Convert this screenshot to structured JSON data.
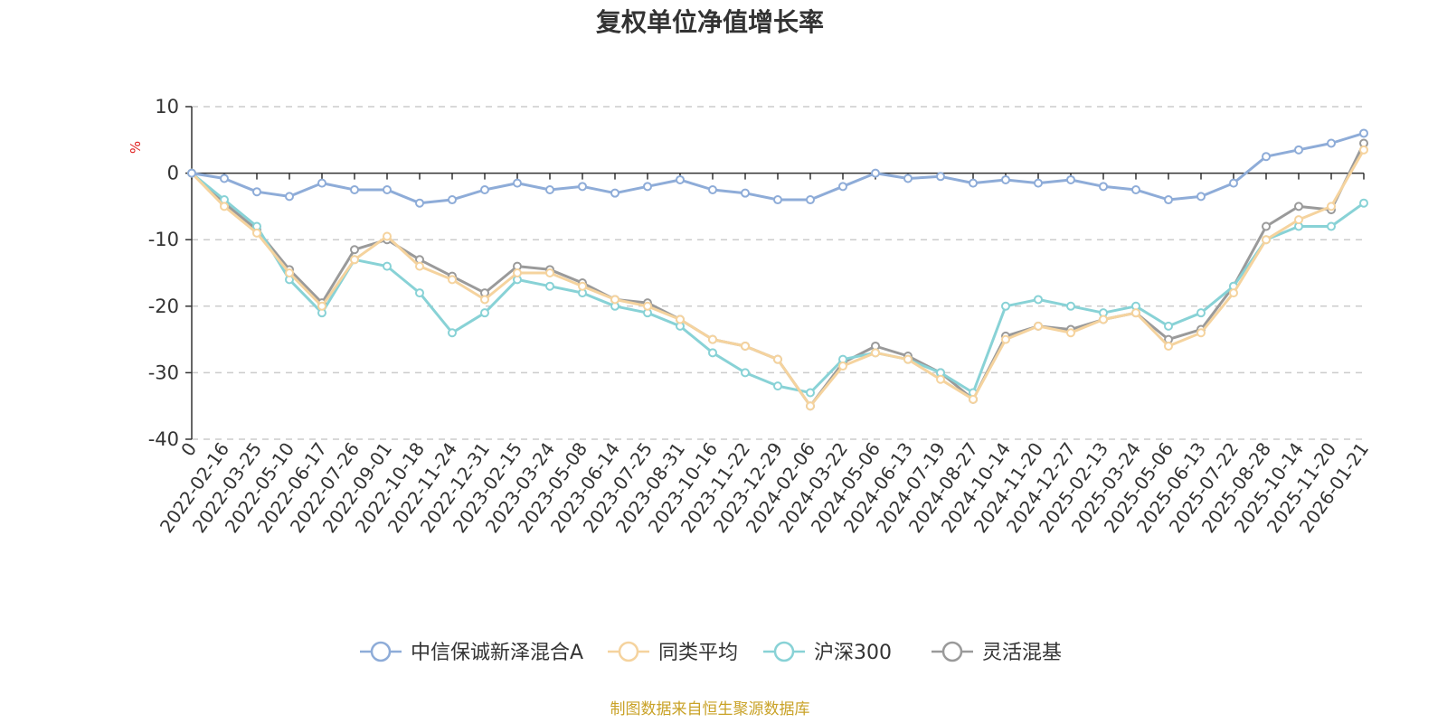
{
  "chart_data": {
    "type": "line",
    "title": "复权单位净值增长率",
    "ylabel": "%",
    "ylim": [
      -40,
      10
    ],
    "yticks": [
      10,
      0,
      -10,
      -20,
      -30,
      -40
    ],
    "grid": true,
    "legend_position": "bottom",
    "x_categories": [
      "0",
      "2022-02-16",
      "2022-03-25",
      "2022-05-10",
      "2022-06-17",
      "2022-07-26",
      "2022-09-01",
      "2022-10-18",
      "2022-11-24",
      "2022-12-31",
      "2023-02-15",
      "2023-03-24",
      "2023-05-08",
      "2023-06-14",
      "2023-07-25",
      "2023-08-31",
      "2023-10-16",
      "2023-11-22",
      "2023-12-29",
      "2024-02-06",
      "2024-03-22",
      "2024-05-06",
      "2024-06-13",
      "2024-07-19",
      "2024-08-27",
      "2024-10-14",
      "2024-11-20",
      "2024-12-27",
      "2025-02-13",
      "2025-03-24",
      "2025-05-06",
      "2025-06-13",
      "2025-07-22",
      "2025-08-28",
      "2025-10-14",
      "2025-11-20",
      "2026-01-21"
    ],
    "series": [
      {
        "name": "中信保诚新泽混合A",
        "color": "#8eacd8",
        "values": [
          0,
          -0.8,
          -2.8,
          -3.5,
          -1.5,
          -2.5,
          -2.5,
          -4.5,
          -4,
          -2.5,
          -1.5,
          -2.5,
          -2,
          -3,
          -2,
          -1,
          -2.5,
          -3,
          -4,
          -4,
          -2,
          0,
          -0.8,
          -0.5,
          -1.5,
          -1,
          -1.5,
          -1,
          -2,
          -2.5,
          -4,
          -3.5,
          -1.5,
          2.5,
          3.5,
          4.5,
          6
        ]
      },
      {
        "name": "同类平均",
        "color": "#f5d39e",
        "values": [
          0,
          -5,
          -9,
          -15,
          -20,
          -13,
          -9.5,
          -14,
          -16,
          -19,
          -15,
          -15,
          -17,
          -19,
          -20,
          -22,
          -25,
          -26,
          -28,
          -35,
          -29,
          -27,
          -28,
          -31,
          -34,
          -25,
          -23,
          -24,
          -22,
          -21,
          -26,
          -24,
          -18,
          -10,
          -7,
          -5,
          3.5
        ]
      },
      {
        "name": "沪深300",
        "color": "#88d2d6",
        "values": [
          0,
          -4,
          -8,
          -16,
          -21,
          -13,
          -14,
          -18,
          -24,
          -21,
          -16,
          -17,
          -18,
          -20,
          -21,
          -23,
          -27,
          -30,
          -32,
          -33,
          -28,
          -27,
          -28,
          -30,
          -33,
          -20,
          -19,
          -20,
          -21,
          -20,
          -23,
          -21,
          -17,
          -10,
          -8,
          -8,
          -4.5
        ]
      },
      {
        "name": "灵活混基",
        "color": "#9a9a9a",
        "values": [
          0,
          -4.5,
          -8.5,
          -14.5,
          -19.5,
          -11.5,
          -10,
          -13,
          -15.5,
          -18,
          -14,
          -14.5,
          -16.5,
          -19,
          -19.5,
          -22,
          -25,
          -26,
          -28,
          -35,
          -28.5,
          -26,
          -27.5,
          -30,
          -34,
          -24.5,
          -23,
          -23.5,
          -22,
          -21,
          -25,
          -23.5,
          -17,
          -8,
          -5,
          -5.5,
          4.5
        ]
      }
    ]
  },
  "source_note": "制图数据来自恒生聚源数据库"
}
